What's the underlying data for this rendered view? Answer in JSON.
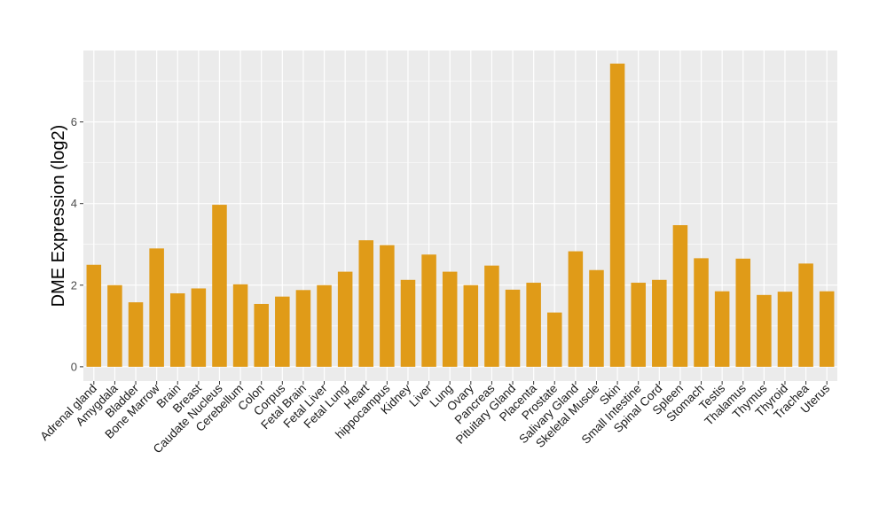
{
  "chart_data": {
    "type": "bar",
    "ylabel": "DME Expression (log2)",
    "xlabel": "",
    "ylim": [
      -0.35,
      7.75
    ],
    "yticks": [
      0,
      2,
      4,
      6
    ],
    "grid": true,
    "bar_color": "#E09B18",
    "panel_color": "#EBEBEB",
    "grid_color": "#FFFFFF",
    "categories": [
      "Adrenal gland",
      "Amygdala",
      "Bladder",
      "Bone Marrow",
      "Brain",
      "Breast",
      "Caudate Nucleus",
      "Cerebellum",
      "Colon",
      "Corpus",
      "Fetal Brain",
      "Fetal Liver",
      "Fetal Lung",
      "Heart",
      "hippocampus",
      "Kidney",
      "Liver",
      "Lung",
      "Ovary",
      "Pancreas",
      "Pituitary Gland",
      "Placenta",
      "Prostate",
      "Salivary Gland",
      "Skeletal Muscle",
      "Skin",
      "Small Intestine",
      "Spinal Cord",
      "Spleen",
      "Stomach",
      "Testis",
      "Thalamus",
      "Thymus",
      "Thyroid",
      "Trachea",
      "Uterus"
    ],
    "values": [
      2.5,
      2.0,
      1.58,
      2.9,
      1.8,
      1.92,
      3.97,
      2.02,
      1.54,
      1.72,
      1.88,
      2.0,
      2.33,
      3.1,
      2.98,
      2.13,
      2.75,
      2.33,
      2.0,
      2.48,
      1.89,
      2.06,
      1.33,
      2.83,
      2.37,
      7.43,
      2.06,
      2.13,
      3.47,
      2.66,
      1.85,
      2.65,
      1.76,
      1.84,
      2.53,
      1.85
    ]
  }
}
